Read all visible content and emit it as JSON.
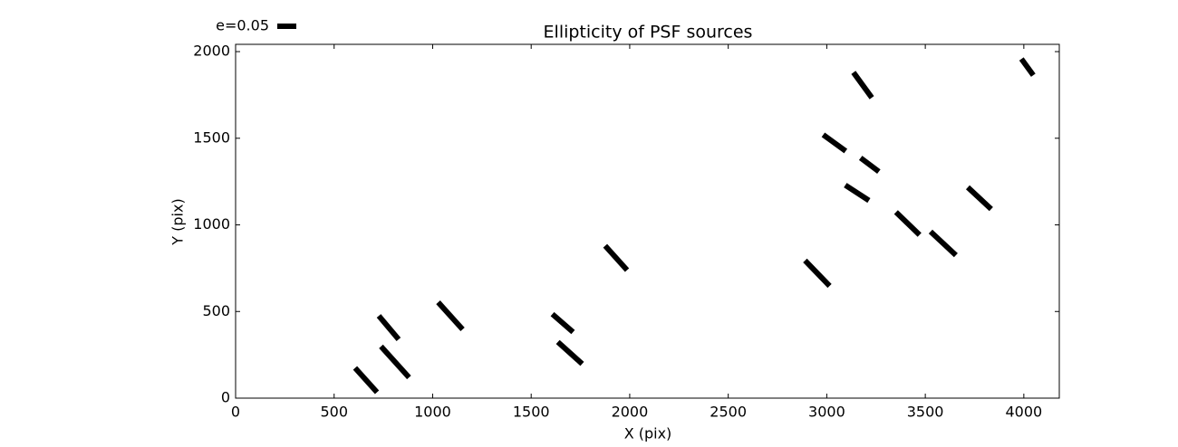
{
  "chart_data": {
    "type": "ellipticity",
    "title": "Ellipticity of PSF sources",
    "x_label": "X (pix)",
    "y_label": "Y (pix)",
    "x": [
      662,
      809,
      777,
      1090,
      1660,
      1697,
      1931,
      2952,
      3039,
      3218,
      3154,
      3182,
      3411,
      3591,
      3775,
      4018
    ],
    "y": [
      104,
      209,
      407,
      475,
      433,
      261,
      809,
      721,
      1473,
      1347,
      1185,
      1807,
      1008,
      893,
      1154,
      1911
    ],
    "e": [
      0.086,
      0.11,
      0.081,
      0.096,
      0.072,
      0.086,
      0.086,
      0.093,
      0.073,
      0.06,
      0.074,
      0.082,
      0.086,
      0.091,
      0.084,
      0.053
    ],
    "angle": [
      -48,
      -48,
      -50,
      -48,
      -41,
      -42,
      -48,
      -46,
      -36,
      -37,
      -33,
      -54,
      -44,
      -43,
      -43,
      -54
    ],
    "color": "#000000",
    "key": {
      "label": "e=0.05",
      "e": 0.05
    },
    "xlim": [
      0,
      4180
    ],
    "ylim": [
      0,
      2042
    ],
    "xticks": [
      0,
      500,
      1000,
      1500,
      2000,
      2500,
      3000,
      3500,
      4000
    ],
    "yticks": [
      0,
      500,
      1000,
      1500,
      2000
    ]
  }
}
